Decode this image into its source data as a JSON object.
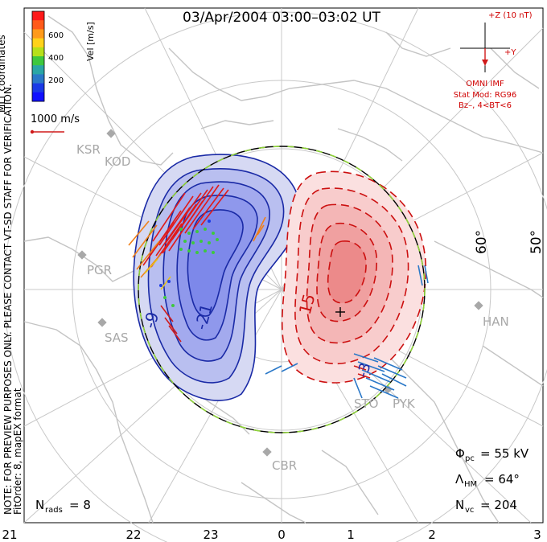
{
  "title": "03/Apr/2004 03:00–03:02 UT",
  "colorbar": {
    "label": "Vel [m/s]",
    "ticks": [
      "600",
      "400",
      "200"
    ],
    "colors": [
      "#ff1a1a",
      "#ff5a1a",
      "#ff9a1a",
      "#ffd21a",
      "#b6e01a",
      "#3ec83e",
      "#2aa6a6",
      "#2a78c8",
      "#1a3ae6",
      "#1010ff"
    ]
  },
  "coordinates_label": "MLT coordinates",
  "scale_label": "1000 m/s",
  "imf": {
    "bz_label": "+Z (10 nT)",
    "by_label": "+Y",
    "source": "OMNI IMF",
    "model": "Stat Mod: RG96",
    "condition": "Bz–, 4<BT<6"
  },
  "note": "NOTE: FOR PREVIEW PURPOSES ONLY. PLEASE CONTACT VT-SD STAFF FOR VERIFICATION.",
  "fit_order": "FitOrder: 8, mapEX format",
  "stations": [
    "KSR",
    "KOD",
    "PGR",
    "SAS",
    "HAN",
    "STO",
    "PYK",
    "CBR"
  ],
  "latitude_labels": [
    "60°",
    "50°"
  ],
  "contour_labels": [
    "-21",
    "-9",
    "15",
    "-3"
  ],
  "stats": {
    "n_rads": "N",
    "n_rads_sub": "rads",
    "n_rads_value": "= 8",
    "phi_pc": "Φ",
    "phi_pc_sub": "pc",
    "phi_pc_value": "= 55 kV",
    "lambda_hm": "Λ",
    "lambda_hm_sub": "HM",
    "lambda_hm_value": "= 64°",
    "n_vc": "N",
    "n_vc_sub": "vc",
    "n_vc_value": "= 204"
  },
  "mlt_axis": [
    "21",
    "22",
    "23",
    "0",
    "1",
    "2",
    "3"
  ]
}
